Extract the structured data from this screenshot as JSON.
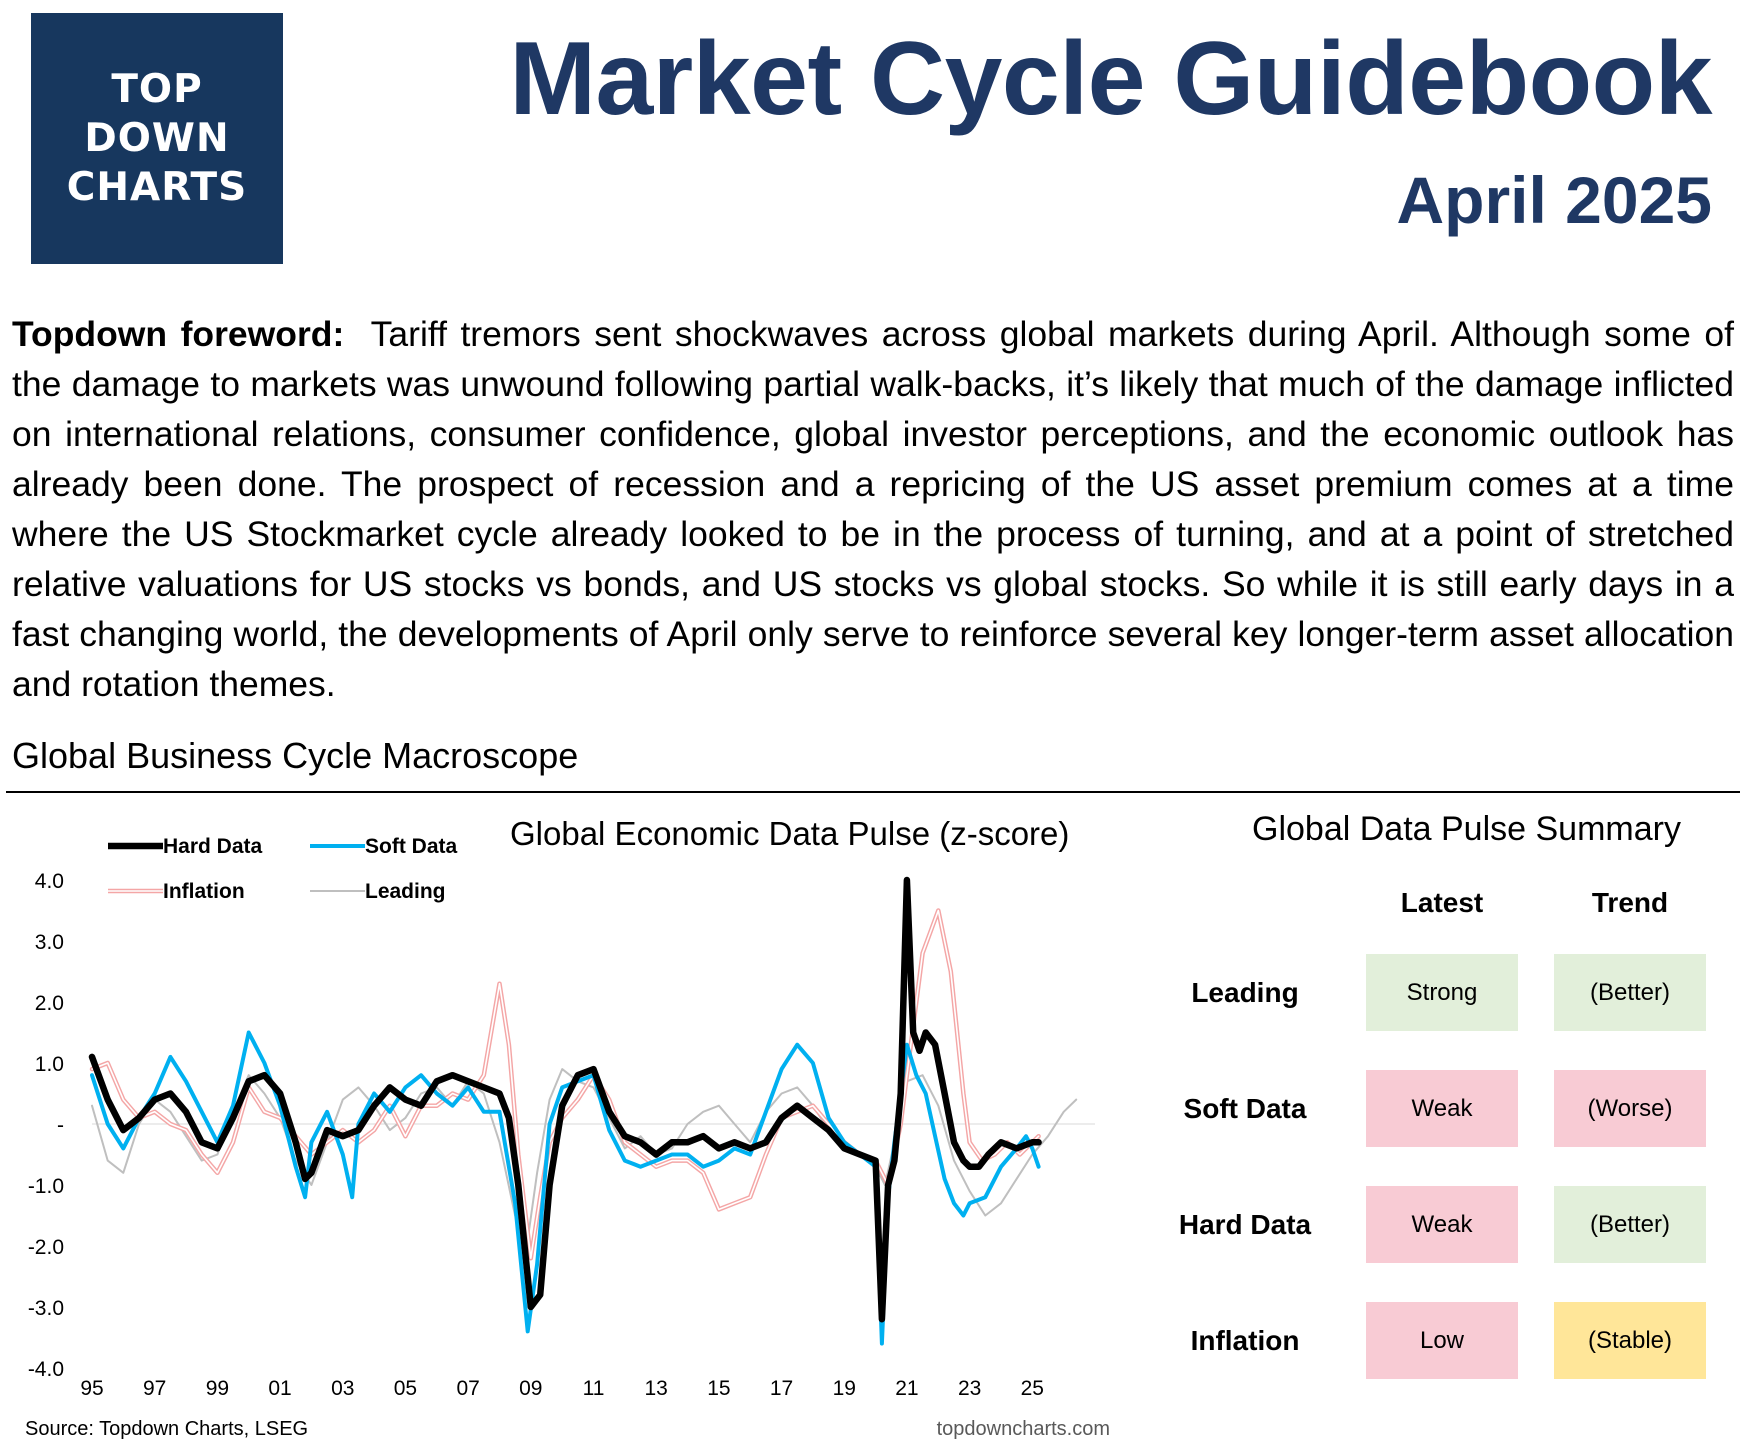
{
  "header": {
    "logo_lines": [
      "TOP",
      "DOWN",
      "CHARTS"
    ],
    "title": "Market Cycle Guidebook",
    "date": "April 2025"
  },
  "foreword": {
    "label": "Topdown foreword:",
    "text": "Tariff tremors sent shockwaves across global markets during April.  Although some of the damage to markets was unwound following partial walk-backs, it’s likely that much of the damage inflicted on international relations, consumer confidence, global investor perceptions, and the economic outlook has already been done.  The prospect of recession and a repricing of the US asset premium comes at a time where the US Stockmarket cycle already looked to be in the process of turning, and at a point of stretched relative valuations for US stocks vs bonds, and US stocks vs global stocks.  So while it is still early days in a fast changing world, the developments of April only serve to reinforce several key longer-term asset allocation and rotation themes."
  },
  "section_title": "Global Business Cycle Macroscope",
  "chart_data": {
    "type": "line",
    "title": "Global Economic Data Pulse (z-score)",
    "xlabel": "",
    "ylabel": "",
    "ylim": [
      -4,
      4
    ],
    "xlim": [
      1995,
      2027
    ],
    "y_ticks": [
      4,
      3,
      2,
      1,
      0,
      -1,
      -2,
      -3,
      -4
    ],
    "y_tick_labels": [
      "4.0",
      "3.0",
      "2.0",
      "1.0",
      "-",
      "-1.0",
      "-2.0",
      "-3.0",
      "-4.0"
    ],
    "x_ticks": [
      1995,
      1997,
      1999,
      2001,
      2003,
      2005,
      2007,
      2009,
      2011,
      2013,
      2015,
      2017,
      2019,
      2021,
      2023,
      2025
    ],
    "x_tick_labels": [
      "95",
      "97",
      "99",
      "01",
      "03",
      "05",
      "07",
      "09",
      "11",
      "13",
      "15",
      "17",
      "19",
      "21",
      "23",
      "25"
    ],
    "grid": false,
    "legend_position": "top-left",
    "source": "Source: Topdown Charts, LSEG",
    "watermark": "topdowncharts.com",
    "series": [
      {
        "name": "Hard Data",
        "color": "#000000",
        "style": "thick",
        "x": [
          1995.0,
          1995.5,
          1996.0,
          1996.5,
          1997.0,
          1997.5,
          1998.0,
          1998.5,
          1999.0,
          1999.5,
          2000.0,
          2000.5,
          2001.0,
          2001.5,
          2001.8,
          2002.0,
          2002.5,
          2003.0,
          2003.5,
          2004.0,
          2004.5,
          2005.0,
          2005.5,
          2006.0,
          2006.5,
          2007.0,
          2007.5,
          2008.0,
          2008.3,
          2008.6,
          2009.0,
          2009.3,
          2009.6,
          2010.0,
          2010.5,
          2011.0,
          2011.5,
          2012.0,
          2012.5,
          2013.0,
          2013.5,
          2014.0,
          2014.5,
          2015.0,
          2015.5,
          2016.0,
          2016.5,
          2017.0,
          2017.5,
          2018.0,
          2018.5,
          2019.0,
          2019.5,
          2020.0,
          2020.2,
          2020.4,
          2020.6,
          2020.8,
          2021.0,
          2021.2,
          2021.4,
          2021.6,
          2021.9,
          2022.2,
          2022.5,
          2022.8,
          2023.0,
          2023.3,
          2023.6,
          2024.0,
          2024.5,
          2025.0,
          2025.2
        ],
        "y": [
          1.1,
          0.4,
          -0.1,
          0.1,
          0.4,
          0.5,
          0.2,
          -0.3,
          -0.4,
          0.1,
          0.7,
          0.8,
          0.5,
          -0.3,
          -0.9,
          -0.8,
          -0.1,
          -0.2,
          -0.1,
          0.3,
          0.6,
          0.4,
          0.3,
          0.7,
          0.8,
          0.7,
          0.6,
          0.5,
          0.1,
          -1.0,
          -3.0,
          -2.8,
          -1.0,
          0.3,
          0.8,
          0.9,
          0.2,
          -0.2,
          -0.3,
          -0.5,
          -0.3,
          -0.3,
          -0.2,
          -0.4,
          -0.3,
          -0.4,
          -0.3,
          0.1,
          0.3,
          0.1,
          -0.1,
          -0.4,
          -0.5,
          -0.6,
          -3.2,
          -1.0,
          -0.6,
          0.5,
          4.0,
          1.5,
          1.2,
          1.5,
          1.3,
          0.5,
          -0.3,
          -0.6,
          -0.7,
          -0.7,
          -0.5,
          -0.3,
          -0.4,
          -0.3,
          -0.3
        ]
      },
      {
        "name": "Soft Data",
        "color": "#00b0f0",
        "style": "medium",
        "x": [
          1995.0,
          1995.5,
          1996.0,
          1996.5,
          1997.0,
          1997.5,
          1998.0,
          1998.5,
          1999.0,
          1999.5,
          2000.0,
          2000.5,
          2001.0,
          2001.5,
          2001.8,
          2002.0,
          2002.5,
          2003.0,
          2003.3,
          2003.5,
          2004.0,
          2004.5,
          2005.0,
          2005.5,
          2006.0,
          2006.5,
          2007.0,
          2007.5,
          2008.0,
          2008.5,
          2008.9,
          2009.2,
          2009.6,
          2010.0,
          2010.5,
          2011.0,
          2011.5,
          2012.0,
          2012.5,
          2013.0,
          2013.5,
          2014.0,
          2014.5,
          2015.0,
          2015.5,
          2016.0,
          2016.5,
          2017.0,
          2017.5,
          2018.0,
          2018.5,
          2019.0,
          2019.5,
          2020.0,
          2020.2,
          2020.4,
          2020.6,
          2020.8,
          2021.0,
          2021.3,
          2021.6,
          2021.9,
          2022.2,
          2022.5,
          2022.8,
          2023.0,
          2023.5,
          2024.0,
          2024.5,
          2024.8,
          2025.0,
          2025.2
        ],
        "y": [
          0.8,
          0.0,
          -0.4,
          0.1,
          0.5,
          1.1,
          0.7,
          0.2,
          -0.3,
          0.3,
          1.5,
          1.0,
          0.3,
          -0.7,
          -1.2,
          -0.3,
          0.2,
          -0.5,
          -1.2,
          0.0,
          0.5,
          0.2,
          0.6,
          0.8,
          0.5,
          0.3,
          0.6,
          0.2,
          0.2,
          -1.3,
          -3.4,
          -2.3,
          0.0,
          0.6,
          0.7,
          0.8,
          -0.1,
          -0.6,
          -0.7,
          -0.6,
          -0.5,
          -0.5,
          -0.7,
          -0.6,
          -0.4,
          -0.5,
          0.2,
          0.9,
          1.3,
          1.0,
          0.1,
          -0.3,
          -0.5,
          -0.7,
          -3.6,
          -1.2,
          -0.3,
          0.5,
          1.3,
          0.8,
          0.5,
          -0.2,
          -0.9,
          -1.3,
          -1.5,
          -1.3,
          -1.2,
          -0.7,
          -0.4,
          -0.2,
          -0.4,
          -0.7
        ]
      },
      {
        "name": "Inflation",
        "color": "#f4a6a6",
        "style": "double",
        "x": [
          1995.0,
          1995.5,
          1996.0,
          1996.5,
          1997.0,
          1997.5,
          1998.0,
          1998.5,
          1999.0,
          1999.5,
          2000.0,
          2000.5,
          2001.0,
          2001.5,
          2002.0,
          2002.5,
          2003.0,
          2003.5,
          2004.0,
          2004.5,
          2005.0,
          2005.5,
          2006.0,
          2006.5,
          2007.0,
          2007.5,
          2008.0,
          2008.3,
          2008.6,
          2009.0,
          2009.3,
          2009.6,
          2010.0,
          2010.5,
          2011.0,
          2011.5,
          2012.0,
          2012.5,
          2013.0,
          2013.5,
          2014.0,
          2014.5,
          2015.0,
          2015.5,
          2016.0,
          2016.5,
          2017.0,
          2017.5,
          2018.0,
          2018.5,
          2019.0,
          2019.5,
          2020.0,
          2020.4,
          2020.8,
          2021.0,
          2021.5,
          2022.0,
          2022.4,
          2022.8,
          2023.0,
          2023.4,
          2023.8,
          2024.2,
          2024.6,
          2025.0,
          2025.2
        ],
        "y": [
          0.9,
          1.0,
          0.4,
          0.1,
          0.2,
          0.0,
          -0.1,
          -0.5,
          -0.8,
          -0.3,
          0.6,
          0.2,
          0.1,
          -0.2,
          -0.5,
          -0.3,
          -0.1,
          -0.3,
          -0.1,
          0.3,
          -0.2,
          0.3,
          0.3,
          0.5,
          0.4,
          0.8,
          2.3,
          1.3,
          -0.5,
          -2.2,
          -1.2,
          -0.3,
          0.1,
          0.4,
          0.8,
          0.4,
          -0.3,
          -0.5,
          -0.7,
          -0.6,
          -0.6,
          -0.8,
          -1.4,
          -1.3,
          -1.2,
          -0.5,
          0.1,
          0.2,
          0.3,
          0.0,
          -0.3,
          -0.5,
          -0.6,
          -1.0,
          0.0,
          0.8,
          2.8,
          3.5,
          2.5,
          0.5,
          -0.3,
          -0.6,
          -0.5,
          -0.3,
          -0.5,
          -0.3,
          -0.2
        ]
      },
      {
        "name": "Leading",
        "color": "#bfbfbf",
        "style": "thin",
        "x": [
          1995.0,
          1995.5,
          1996.0,
          1996.5,
          1997.0,
          1997.5,
          1998.0,
          1998.5,
          1999.0,
          1999.5,
          2000.0,
          2000.5,
          2001.0,
          2001.5,
          2002.0,
          2002.5,
          2003.0,
          2003.5,
          2004.0,
          2004.5,
          2005.0,
          2005.5,
          2006.0,
          2006.5,
          2007.0,
          2007.5,
          2008.0,
          2008.5,
          2008.9,
          2009.2,
          2009.6,
          2010.0,
          2010.5,
          2011.0,
          2011.5,
          2012.0,
          2012.5,
          2013.0,
          2013.5,
          2014.0,
          2014.5,
          2015.0,
          2015.5,
          2016.0,
          2016.5,
          2017.0,
          2017.5,
          2018.0,
          2018.5,
          2019.0,
          2019.5,
          2020.0,
          2020.3,
          2020.6,
          2021.0,
          2021.5,
          2022.0,
          2022.5,
          2023.0,
          2023.5,
          2024.0,
          2024.5,
          2025.0,
          2025.5,
          2026.0,
          2026.4
        ],
        "y": [
          0.3,
          -0.6,
          -0.8,
          0.0,
          0.4,
          0.2,
          -0.2,
          -0.6,
          -0.5,
          0.2,
          0.8,
          0.5,
          0.1,
          -0.6,
          -1.0,
          -0.3,
          0.4,
          0.6,
          0.3,
          -0.1,
          0.1,
          0.5,
          0.6,
          0.3,
          0.7,
          0.5,
          -0.3,
          -1.5,
          -1.9,
          -0.8,
          0.4,
          0.9,
          0.7,
          0.6,
          0.1,
          -0.4,
          -0.2,
          -0.5,
          -0.4,
          0.0,
          0.2,
          0.3,
          0.0,
          -0.3,
          0.2,
          0.5,
          0.6,
          0.3,
          -0.1,
          -0.3,
          -0.5,
          -0.7,
          -1.0,
          -0.3,
          0.7,
          0.8,
          0.3,
          -0.6,
          -1.1,
          -1.5,
          -1.3,
          -0.9,
          -0.5,
          -0.2,
          0.2,
          0.4
        ]
      }
    ]
  },
  "summary": {
    "title": "Global Data Pulse Summary",
    "col_latest": "Latest",
    "col_trend": "Trend",
    "rows": [
      {
        "label": "Leading",
        "latest": "Strong",
        "trend": "(Better)",
        "latest_color": "#e2efda",
        "trend_color": "#e2efda"
      },
      {
        "label": "Soft Data",
        "latest": "Weak",
        "trend": "(Worse)",
        "latest_color": "#f8cbd4",
        "trend_color": "#f8cbd4"
      },
      {
        "label": "Hard Data",
        "latest": "Weak",
        "trend": "(Better)",
        "latest_color": "#f8cbd4",
        "trend_color": "#e2efda"
      },
      {
        "label": "Inflation",
        "latest": "Low",
        "trend": "(Stable)",
        "latest_color": "#f8cbd4",
        "trend_color": "#ffe699"
      }
    ]
  }
}
